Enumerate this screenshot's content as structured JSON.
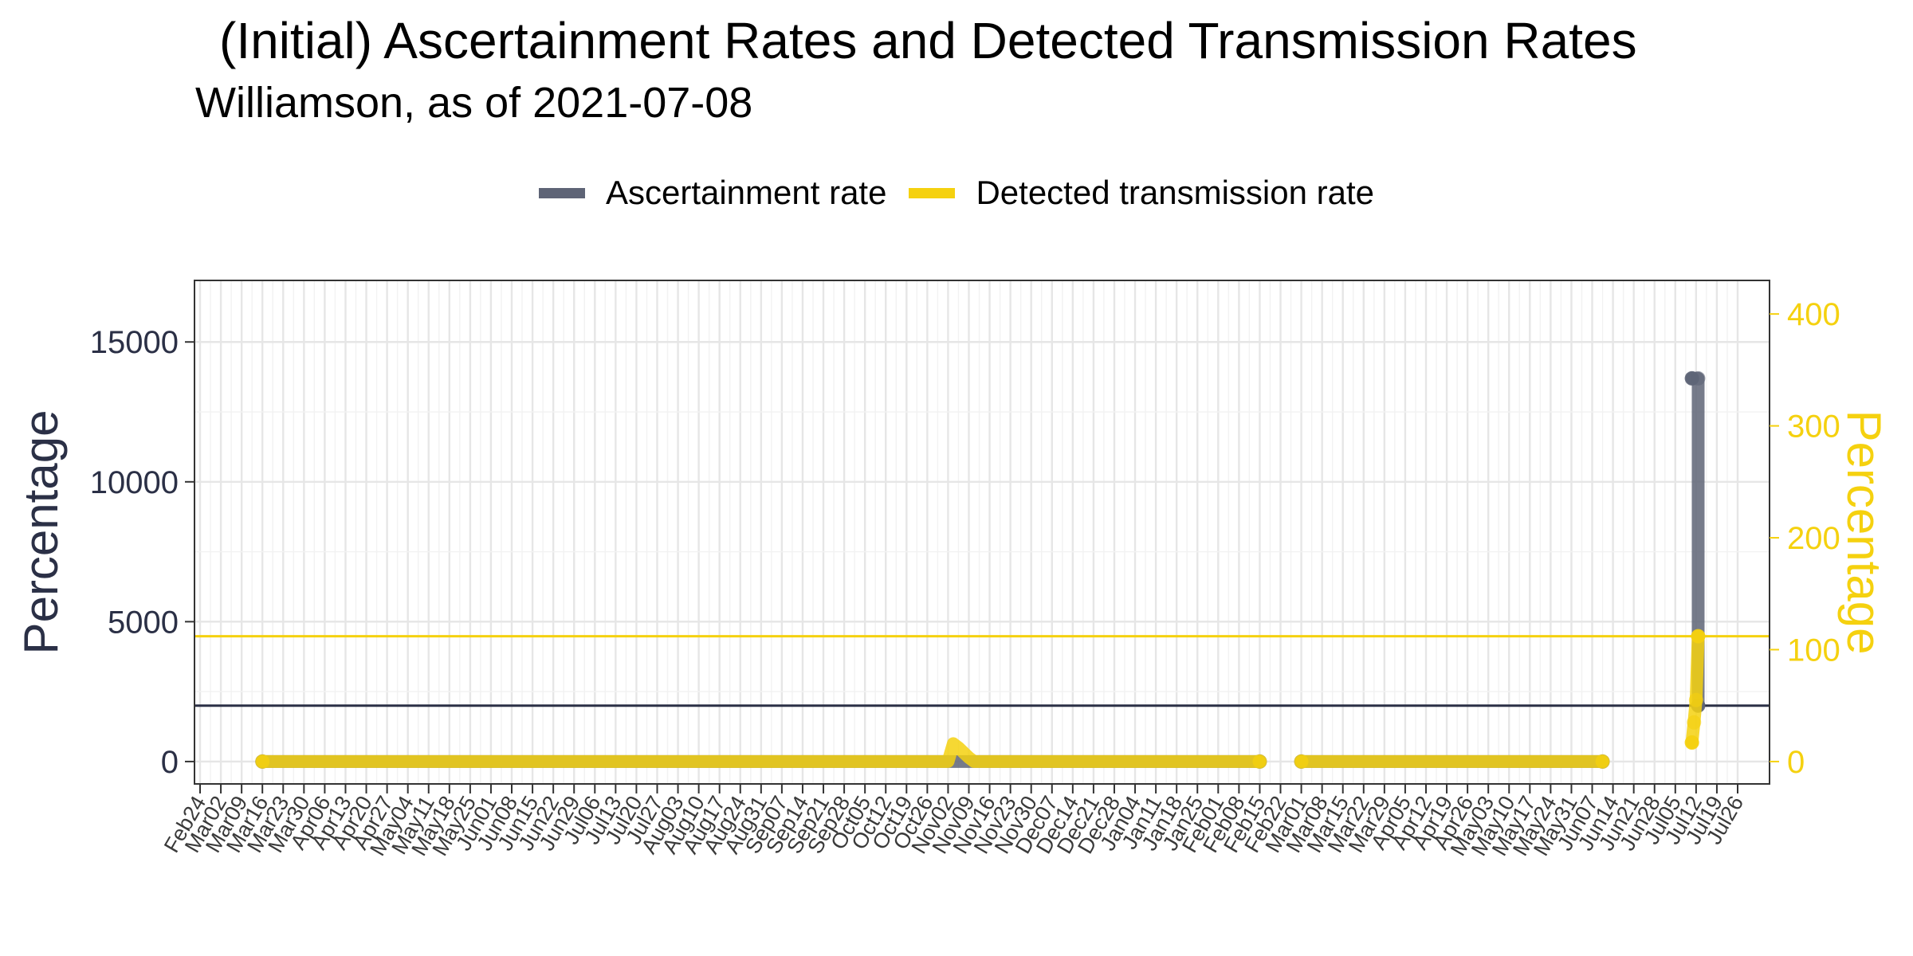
{
  "chart_data": {
    "type": "line",
    "title": "(Initial) Ascertainment Rates and Detected Transmission Rates",
    "subtitle": "Williamson, as of 2021-07-08",
    "ylabel_left": "Percentage",
    "ylabel_right": "Percentage",
    "ylim_left": [
      -800,
      17200
    ],
    "ylim_right": [
      -20,
      430
    ],
    "yticks_left": [
      0,
      5000,
      10000,
      15000
    ],
    "yticks_right": [
      0,
      100,
      200,
      300,
      400
    ],
    "x_tick_labels": [
      "Feb24",
      "Mar02",
      "Mar09",
      "Mar16",
      "Mar23",
      "Mar30",
      "Apr06",
      "Apr13",
      "Apr20",
      "Apr27",
      "May04",
      "May11",
      "May18",
      "May25",
      "Jun01",
      "Jun08",
      "Jun15",
      "Jun22",
      "Jun29",
      "Jul06",
      "Jul13",
      "Jul20",
      "Jul27",
      "Aug03",
      "Aug10",
      "Aug17",
      "Aug24",
      "Aug31",
      "Sep07",
      "Sep14",
      "Sep21",
      "Sep28",
      "Oct05",
      "Oct12",
      "Oct19",
      "Oct26",
      "Nov02",
      "Nov09",
      "Nov16",
      "Nov23",
      "Nov30",
      "Dec07",
      "Dec14",
      "Dec21",
      "Dec28",
      "Jan04",
      "Jan11",
      "Jan18",
      "Jan25",
      "Feb01",
      "Feb08",
      "Feb15",
      "Feb22",
      "Mar01",
      "Mar08",
      "Mar15",
      "Mar22",
      "Mar29",
      "Apr05",
      "Apr12",
      "Apr19",
      "Apr26",
      "May03",
      "May10",
      "May17",
      "May24",
      "May31",
      "Jun07",
      "Jun14",
      "Jun21",
      "Jun28",
      "Jul05",
      "Jul12",
      "Jul19",
      "Jul26"
    ],
    "grid": true,
    "legend_position": "top",
    "reference_lines": [
      {
        "series": "Ascertainment rate",
        "axis": "left",
        "value": 2000,
        "color": "#2b3046"
      },
      {
        "series": "Detected transmission rate",
        "axis": "right",
        "value": 112,
        "color": "#f5d10f"
      }
    ],
    "series": [
      {
        "name": "Ascertainment rate",
        "axis": "left",
        "color": "#5e6476",
        "segments": [
          {
            "x_start_index": 3,
            "x_end_index": 51,
            "approx_value": 0
          },
          {
            "x_start_index": 53,
            "x_end_index": 67.5,
            "approx_value": 0
          },
          {
            "points": [
              [
                71.8,
                13700
              ],
              [
                72.1,
                13700
              ],
              [
                72.1,
                2000
              ]
            ]
          }
        ]
      },
      {
        "name": "Detected transmission rate",
        "axis": "right",
        "color": "#f5d10f",
        "segments": [
          {
            "x_start_index": 3,
            "x_end_index": 51,
            "approx_value": 0,
            "bump": {
              "x_index": 36.3,
              "value": 16
            }
          },
          {
            "x_start_index": 53,
            "x_end_index": 67.5,
            "approx_value": 0
          },
          {
            "points": [
              [
                71.8,
                17
              ],
              [
                71.9,
                35
              ],
              [
                72.0,
                55
              ],
              [
                72.1,
                112
              ]
            ]
          }
        ]
      }
    ]
  },
  "legend": {
    "item_1": "Ascertainment rate",
    "item_2": "Detected transmission rate"
  },
  "colors": {
    "ascertainment": "#5e6476",
    "detected": "#f5d10f",
    "axis_text_left": "#2b3046",
    "axis_text_right": "#f5d10f"
  }
}
